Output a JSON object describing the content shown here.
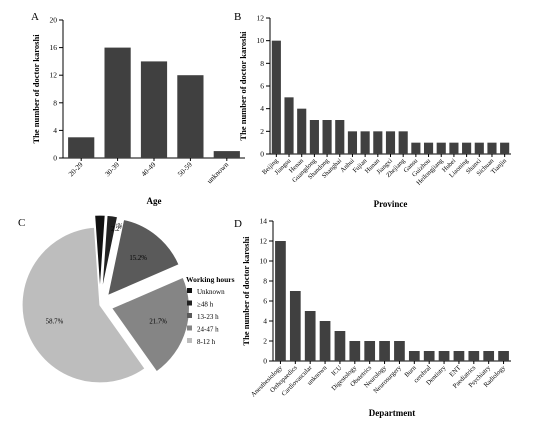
{
  "chart_data": [
    {
      "panel": "A",
      "type": "bar",
      "xlabel": "Age",
      "ylabel": "The number of doctor karoshi",
      "ylim": [
        0,
        20
      ],
      "yticks": [
        0,
        4,
        8,
        12,
        16,
        20
      ],
      "categories": [
        "20-29",
        "30-39",
        "40-49",
        "50-59",
        "unknown"
      ],
      "values": [
        3,
        16,
        14,
        12,
        1
      ],
      "bar_color": "#404040"
    },
    {
      "panel": "B",
      "type": "bar",
      "xlabel": "Province",
      "ylabel": "The number of doctor karoshi",
      "ylim": [
        0,
        12
      ],
      "yticks": [
        0,
        2,
        4,
        6,
        8,
        10,
        12
      ],
      "categories": [
        "Beijing",
        "Jiangsu",
        "Henan",
        "Guangdong",
        "Shandong",
        "Shanghai",
        "Anhui",
        "Fujian",
        "Hunan",
        "Jiangxi",
        "Zhejiang",
        "Gansu",
        "Guizhou",
        "Heilongjiang",
        "Hubei",
        "Liaoning",
        "Shanxi",
        "Sichuan",
        "Tianjin"
      ],
      "values": [
        10,
        5,
        4,
        3,
        3,
        3,
        2,
        2,
        2,
        2,
        2,
        1,
        1,
        1,
        1,
        1,
        1,
        1,
        1
      ],
      "bar_color": "#404040"
    },
    {
      "panel": "C",
      "type": "pie",
      "legend_title": "Working hours",
      "legend_position": "right",
      "slices": [
        {
          "label": "Unknown",
          "value": 2.2,
          "display": "2.2%",
          "color": "#111111"
        },
        {
          "label": "≥48 h",
          "value": 2.2,
          "display": "2.2%",
          "color": "#222222"
        },
        {
          "label": "13-23 h",
          "value": 15.2,
          "display": "15.2%",
          "color": "#5a5a5a"
        },
        {
          "label": "24-47 h",
          "value": 21.7,
          "display": "21.7%",
          "color": "#858585"
        },
        {
          "label": "8-12 h",
          "value": 58.7,
          "display": "58.7%",
          "color": "#bdbdbd"
        }
      ]
    },
    {
      "panel": "D",
      "type": "bar",
      "xlabel": "Department",
      "ylabel": "The number of doctor karoshi",
      "ylim": [
        0,
        14
      ],
      "yticks": [
        0,
        2,
        4,
        6,
        8,
        10,
        12,
        14
      ],
      "categories": [
        "Anesthesiology",
        "Orthopaedics",
        "Cardiovascular",
        "unknown",
        "ICU",
        "Digestology",
        "Obstetrics",
        "Neurology",
        "Neurosurgery",
        "Burn",
        "cerebral",
        "Dentistry",
        "ENT",
        "Paediatrics",
        "Psychiatry",
        "Radiology"
      ],
      "values": [
        12,
        7,
        5,
        4,
        3,
        2,
        2,
        2,
        2,
        1,
        1,
        1,
        1,
        1,
        1,
        1
      ],
      "bar_color": "#404040"
    }
  ]
}
